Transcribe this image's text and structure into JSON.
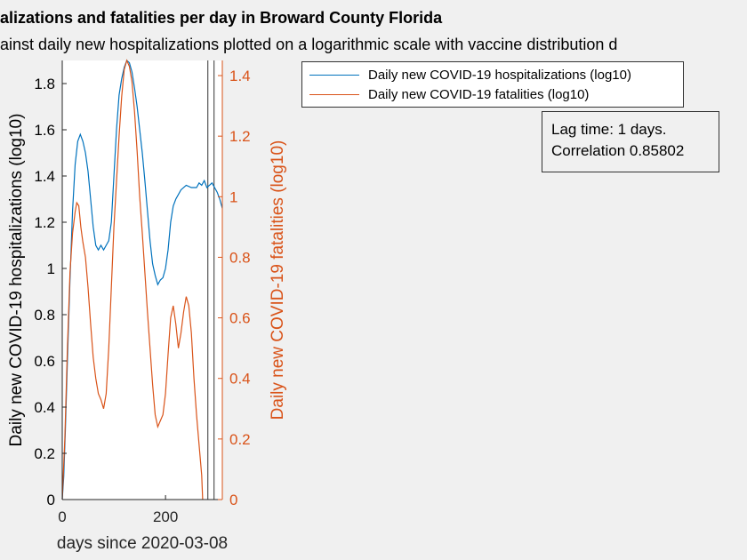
{
  "header": {
    "title": "alizations and fatalities per day in Broward County Florida",
    "subtitle": "ainst daily new hospitalizations plotted on a logarithmic scale with vaccine distribution d"
  },
  "legend": {
    "items": [
      {
        "label": "Daily new COVID-19 hospitalizations (log10)",
        "color": "#0072BD"
      },
      {
        "label": "Daily new COVID-19 fatalities (log10)",
        "color": "#D95319"
      }
    ]
  },
  "stats": {
    "lag": "Lag time: 1 days.",
    "correlation": "Correlation 0.85802"
  },
  "chart_data": {
    "type": "line",
    "xlabel": "days since 2020-03-08",
    "ylabel_left": "Daily new COVID-19 hospitalizations (log10)",
    "ylabel_right": "Daily new COVID-19 fatalities (log10)",
    "xlim": [
      0,
      310
    ],
    "ylim_left": [
      0,
      1.9
    ],
    "ylim_right": [
      0,
      1.45
    ],
    "xticks": [
      "0",
      "200"
    ],
    "yticks_left": [
      "0",
      "0.2",
      "0.4",
      "0.6",
      "0.8",
      "1",
      "1.2",
      "1.4",
      "1.6",
      "1.8"
    ],
    "yticks_right": [
      "0",
      "0.2",
      "0.4",
      "0.6",
      "0.8",
      "1",
      "1.2",
      "1.4"
    ],
    "left_color": "#000000",
    "right_color": "#D95319",
    "vaccine_lines_x": [
      282,
      294
    ],
    "series": [
      {
        "name": "Daily new COVID-19 hospitalizations (log10)",
        "axis": "left",
        "color": "#0072BD",
        "points": [
          [
            0,
            0.0
          ],
          [
            3,
            0.1
          ],
          [
            6,
            0.3
          ],
          [
            10,
            0.6
          ],
          [
            15,
            0.95
          ],
          [
            20,
            1.25
          ],
          [
            25,
            1.45
          ],
          [
            30,
            1.55
          ],
          [
            35,
            1.58
          ],
          [
            40,
            1.55
          ],
          [
            45,
            1.5
          ],
          [
            50,
            1.42
          ],
          [
            55,
            1.3
          ],
          [
            60,
            1.18
          ],
          [
            65,
            1.1
          ],
          [
            70,
            1.08
          ],
          [
            75,
            1.1
          ],
          [
            80,
            1.08
          ],
          [
            85,
            1.1
          ],
          [
            90,
            1.12
          ],
          [
            95,
            1.2
          ],
          [
            100,
            1.4
          ],
          [
            105,
            1.6
          ],
          [
            110,
            1.75
          ],
          [
            115,
            1.82
          ],
          [
            120,
            1.87
          ],
          [
            125,
            1.9
          ],
          [
            130,
            1.89
          ],
          [
            135,
            1.85
          ],
          [
            140,
            1.78
          ],
          [
            145,
            1.7
          ],
          [
            150,
            1.6
          ],
          [
            155,
            1.5
          ],
          [
            160,
            1.38
          ],
          [
            165,
            1.25
          ],
          [
            170,
            1.12
          ],
          [
            175,
            1.02
          ],
          [
            180,
            0.97
          ],
          [
            185,
            0.93
          ],
          [
            190,
            0.95
          ],
          [
            195,
            0.96
          ],
          [
            200,
            1.0
          ],
          [
            205,
            1.08
          ],
          [
            210,
            1.2
          ],
          [
            215,
            1.27
          ],
          [
            220,
            1.3
          ],
          [
            225,
            1.32
          ],
          [
            230,
            1.34
          ],
          [
            240,
            1.36
          ],
          [
            250,
            1.35
          ],
          [
            260,
            1.35
          ],
          [
            265,
            1.37
          ],
          [
            270,
            1.36
          ],
          [
            275,
            1.38
          ],
          [
            280,
            1.35
          ],
          [
            285,
            1.36
          ],
          [
            290,
            1.37
          ],
          [
            295,
            1.35
          ],
          [
            300,
            1.33
          ],
          [
            305,
            1.3
          ],
          [
            310,
            1.26
          ]
        ]
      },
      {
        "name": "Daily new COVID-19 fatalities (log10)",
        "axis": "right",
        "color": "#D95319",
        "points": [
          [
            0,
            0.0
          ],
          [
            5,
            0.2
          ],
          [
            10,
            0.5
          ],
          [
            15,
            0.75
          ],
          [
            20,
            0.88
          ],
          [
            25,
            0.95
          ],
          [
            28,
            0.98
          ],
          [
            32,
            0.97
          ],
          [
            36,
            0.9
          ],
          [
            40,
            0.85
          ],
          [
            45,
            0.8
          ],
          [
            50,
            0.7
          ],
          [
            55,
            0.58
          ],
          [
            60,
            0.47
          ],
          [
            65,
            0.4
          ],
          [
            70,
            0.35
          ],
          [
            75,
            0.33
          ],
          [
            80,
            0.3
          ],
          [
            85,
            0.35
          ],
          [
            90,
            0.5
          ],
          [
            95,
            0.7
          ],
          [
            100,
            0.9
          ],
          [
            105,
            1.05
          ],
          [
            110,
            1.2
          ],
          [
            115,
            1.33
          ],
          [
            120,
            1.42
          ],
          [
            125,
            1.45
          ],
          [
            130,
            1.43
          ],
          [
            135,
            1.38
          ],
          [
            140,
            1.28
          ],
          [
            145,
            1.15
          ],
          [
            150,
            1.0
          ],
          [
            155,
            0.88
          ],
          [
            160,
            0.75
          ],
          [
            165,
            0.62
          ],
          [
            170,
            0.5
          ],
          [
            175,
            0.38
          ],
          [
            180,
            0.28
          ],
          [
            185,
            0.24
          ],
          [
            190,
            0.26
          ],
          [
            195,
            0.28
          ],
          [
            200,
            0.35
          ],
          [
            205,
            0.48
          ],
          [
            210,
            0.6
          ],
          [
            215,
            0.64
          ],
          [
            220,
            0.58
          ],
          [
            225,
            0.5
          ],
          [
            230,
            0.55
          ],
          [
            235,
            0.62
          ],
          [
            240,
            0.67
          ],
          [
            245,
            0.64
          ],
          [
            250,
            0.55
          ],
          [
            255,
            0.4
          ],
          [
            260,
            0.28
          ],
          [
            265,
            0.18
          ],
          [
            270,
            0.08
          ],
          [
            272,
            0.0
          ]
        ]
      }
    ]
  }
}
